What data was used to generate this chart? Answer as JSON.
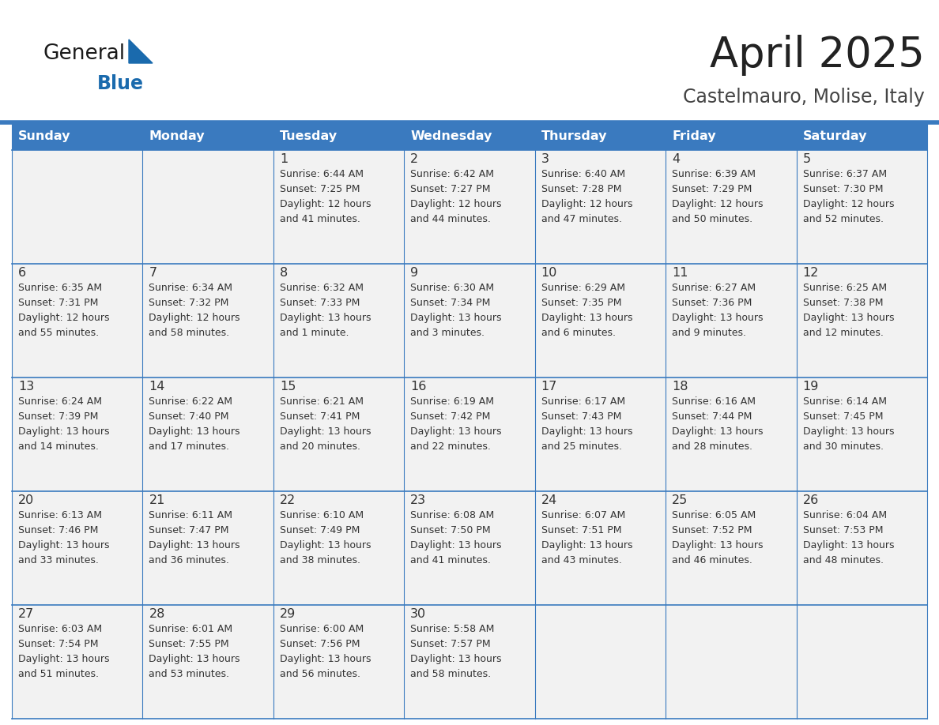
{
  "title": "April 2025",
  "subtitle": "Castelmauro, Molise, Italy",
  "days_of_week": [
    "Sunday",
    "Monday",
    "Tuesday",
    "Wednesday",
    "Thursday",
    "Friday",
    "Saturday"
  ],
  "header_bg": "#3a7abf",
  "header_text": "#ffffff",
  "cell_bg": "#f2f2f2",
  "cell_border": "#3a7abf",
  "text_color": "#333333",
  "title_color": "#222222",
  "subtitle_color": "#444444",
  "logo_general_color": "#1a1a1a",
  "logo_blue_color": "#1a6aad",
  "sep_line_color": "#3a7abf",
  "calendar_data": [
    [
      {
        "day": null,
        "sunrise": null,
        "sunset": null,
        "daylight_line1": null,
        "daylight_line2": null
      },
      {
        "day": null,
        "sunrise": null,
        "sunset": null,
        "daylight_line1": null,
        "daylight_line2": null
      },
      {
        "day": 1,
        "sunrise": "Sunrise: 6:44 AM",
        "sunset": "Sunset: 7:25 PM",
        "daylight_line1": "Daylight: 12 hours",
        "daylight_line2": "and 41 minutes."
      },
      {
        "day": 2,
        "sunrise": "Sunrise: 6:42 AM",
        "sunset": "Sunset: 7:27 PM",
        "daylight_line1": "Daylight: 12 hours",
        "daylight_line2": "and 44 minutes."
      },
      {
        "day": 3,
        "sunrise": "Sunrise: 6:40 AM",
        "sunset": "Sunset: 7:28 PM",
        "daylight_line1": "Daylight: 12 hours",
        "daylight_line2": "and 47 minutes."
      },
      {
        "day": 4,
        "sunrise": "Sunrise: 6:39 AM",
        "sunset": "Sunset: 7:29 PM",
        "daylight_line1": "Daylight: 12 hours",
        "daylight_line2": "and 50 minutes."
      },
      {
        "day": 5,
        "sunrise": "Sunrise: 6:37 AM",
        "sunset": "Sunset: 7:30 PM",
        "daylight_line1": "Daylight: 12 hours",
        "daylight_line2": "and 52 minutes."
      }
    ],
    [
      {
        "day": 6,
        "sunrise": "Sunrise: 6:35 AM",
        "sunset": "Sunset: 7:31 PM",
        "daylight_line1": "Daylight: 12 hours",
        "daylight_line2": "and 55 minutes."
      },
      {
        "day": 7,
        "sunrise": "Sunrise: 6:34 AM",
        "sunset": "Sunset: 7:32 PM",
        "daylight_line1": "Daylight: 12 hours",
        "daylight_line2": "and 58 minutes."
      },
      {
        "day": 8,
        "sunrise": "Sunrise: 6:32 AM",
        "sunset": "Sunset: 7:33 PM",
        "daylight_line1": "Daylight: 13 hours",
        "daylight_line2": "and 1 minute."
      },
      {
        "day": 9,
        "sunrise": "Sunrise: 6:30 AM",
        "sunset": "Sunset: 7:34 PM",
        "daylight_line1": "Daylight: 13 hours",
        "daylight_line2": "and 3 minutes."
      },
      {
        "day": 10,
        "sunrise": "Sunrise: 6:29 AM",
        "sunset": "Sunset: 7:35 PM",
        "daylight_line1": "Daylight: 13 hours",
        "daylight_line2": "and 6 minutes."
      },
      {
        "day": 11,
        "sunrise": "Sunrise: 6:27 AM",
        "sunset": "Sunset: 7:36 PM",
        "daylight_line1": "Daylight: 13 hours",
        "daylight_line2": "and 9 minutes."
      },
      {
        "day": 12,
        "sunrise": "Sunrise: 6:25 AM",
        "sunset": "Sunset: 7:38 PM",
        "daylight_line1": "Daylight: 13 hours",
        "daylight_line2": "and 12 minutes."
      }
    ],
    [
      {
        "day": 13,
        "sunrise": "Sunrise: 6:24 AM",
        "sunset": "Sunset: 7:39 PM",
        "daylight_line1": "Daylight: 13 hours",
        "daylight_line2": "and 14 minutes."
      },
      {
        "day": 14,
        "sunrise": "Sunrise: 6:22 AM",
        "sunset": "Sunset: 7:40 PM",
        "daylight_line1": "Daylight: 13 hours",
        "daylight_line2": "and 17 minutes."
      },
      {
        "day": 15,
        "sunrise": "Sunrise: 6:21 AM",
        "sunset": "Sunset: 7:41 PM",
        "daylight_line1": "Daylight: 13 hours",
        "daylight_line2": "and 20 minutes."
      },
      {
        "day": 16,
        "sunrise": "Sunrise: 6:19 AM",
        "sunset": "Sunset: 7:42 PM",
        "daylight_line1": "Daylight: 13 hours",
        "daylight_line2": "and 22 minutes."
      },
      {
        "day": 17,
        "sunrise": "Sunrise: 6:17 AM",
        "sunset": "Sunset: 7:43 PM",
        "daylight_line1": "Daylight: 13 hours",
        "daylight_line2": "and 25 minutes."
      },
      {
        "day": 18,
        "sunrise": "Sunrise: 6:16 AM",
        "sunset": "Sunset: 7:44 PM",
        "daylight_line1": "Daylight: 13 hours",
        "daylight_line2": "and 28 minutes."
      },
      {
        "day": 19,
        "sunrise": "Sunrise: 6:14 AM",
        "sunset": "Sunset: 7:45 PM",
        "daylight_line1": "Daylight: 13 hours",
        "daylight_line2": "and 30 minutes."
      }
    ],
    [
      {
        "day": 20,
        "sunrise": "Sunrise: 6:13 AM",
        "sunset": "Sunset: 7:46 PM",
        "daylight_line1": "Daylight: 13 hours",
        "daylight_line2": "and 33 minutes."
      },
      {
        "day": 21,
        "sunrise": "Sunrise: 6:11 AM",
        "sunset": "Sunset: 7:47 PM",
        "daylight_line1": "Daylight: 13 hours",
        "daylight_line2": "and 36 minutes."
      },
      {
        "day": 22,
        "sunrise": "Sunrise: 6:10 AM",
        "sunset": "Sunset: 7:49 PM",
        "daylight_line1": "Daylight: 13 hours",
        "daylight_line2": "and 38 minutes."
      },
      {
        "day": 23,
        "sunrise": "Sunrise: 6:08 AM",
        "sunset": "Sunset: 7:50 PM",
        "daylight_line1": "Daylight: 13 hours",
        "daylight_line2": "and 41 minutes."
      },
      {
        "day": 24,
        "sunrise": "Sunrise: 6:07 AM",
        "sunset": "Sunset: 7:51 PM",
        "daylight_line1": "Daylight: 13 hours",
        "daylight_line2": "and 43 minutes."
      },
      {
        "day": 25,
        "sunrise": "Sunrise: 6:05 AM",
        "sunset": "Sunset: 7:52 PM",
        "daylight_line1": "Daylight: 13 hours",
        "daylight_line2": "and 46 minutes."
      },
      {
        "day": 26,
        "sunrise": "Sunrise: 6:04 AM",
        "sunset": "Sunset: 7:53 PM",
        "daylight_line1": "Daylight: 13 hours",
        "daylight_line2": "and 48 minutes."
      }
    ],
    [
      {
        "day": 27,
        "sunrise": "Sunrise: 6:03 AM",
        "sunset": "Sunset: 7:54 PM",
        "daylight_line1": "Daylight: 13 hours",
        "daylight_line2": "and 51 minutes."
      },
      {
        "day": 28,
        "sunrise": "Sunrise: 6:01 AM",
        "sunset": "Sunset: 7:55 PM",
        "daylight_line1": "Daylight: 13 hours",
        "daylight_line2": "and 53 minutes."
      },
      {
        "day": 29,
        "sunrise": "Sunrise: 6:00 AM",
        "sunset": "Sunset: 7:56 PM",
        "daylight_line1": "Daylight: 13 hours",
        "daylight_line2": "and 56 minutes."
      },
      {
        "day": 30,
        "sunrise": "Sunrise: 5:58 AM",
        "sunset": "Sunset: 7:57 PM",
        "daylight_line1": "Daylight: 13 hours",
        "daylight_line2": "and 58 minutes."
      },
      {
        "day": null,
        "sunrise": null,
        "sunset": null,
        "daylight_line1": null,
        "daylight_line2": null
      },
      {
        "day": null,
        "sunrise": null,
        "sunset": null,
        "daylight_line1": null,
        "daylight_line2": null
      },
      {
        "day": null,
        "sunrise": null,
        "sunset": null,
        "daylight_line1": null,
        "daylight_line2": null
      }
    ]
  ]
}
